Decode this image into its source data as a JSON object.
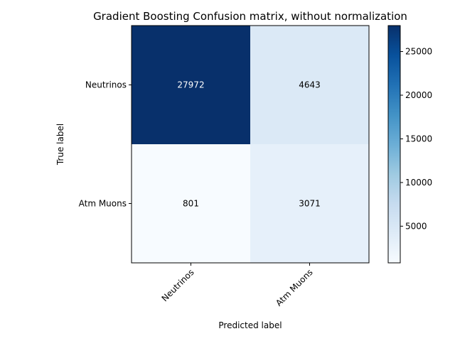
{
  "chart_data": {
    "type": "heatmap",
    "title": "Gradient Boosting Confusion matrix, without normalization",
    "xlabel": "Predicted label",
    "ylabel": "True label",
    "x_categories": [
      "Neutrinos",
      "Atm Muons"
    ],
    "y_categories": [
      "Neutrinos",
      "Atm Muons"
    ],
    "values": [
      [
        27972,
        4643
      ],
      [
        801,
        3071
      ]
    ],
    "value_labels": [
      [
        "27972",
        "4643"
      ],
      [
        "801",
        "3071"
      ]
    ],
    "colormap": "Blues",
    "colorbar": {
      "min": 801,
      "max": 27972,
      "ticks": [
        5000,
        10000,
        15000,
        20000,
        25000
      ],
      "tick_labels": [
        "5000",
        "10000",
        "15000",
        "20000",
        "25000"
      ]
    },
    "colors": {
      "text_on_dark": "#ffffff",
      "text_on_light": "#000000",
      "axis": "#000000"
    }
  }
}
